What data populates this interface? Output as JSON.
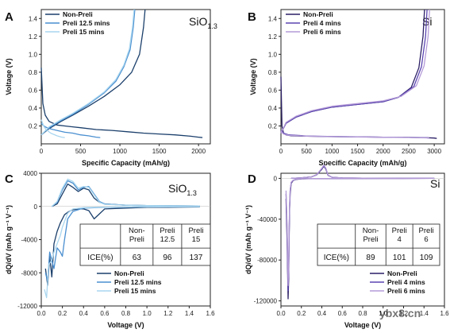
{
  "colors": {
    "dark": "#1b3f6b",
    "mid": "#4a8fd0",
    "light": "#a9d6ef",
    "purple_dark": "#2c1f66",
    "purple_mid": "#5b45b0",
    "purple_light": "#b49bd8"
  },
  "watermark": "ybx8.cn",
  "chart_data": [
    {
      "panel": "A",
      "type": "line",
      "material": "SiO",
      "material_sub": "1.3",
      "xlabel": "Specific Capacity (mAh/g)",
      "ylabel": "Voltage (V)",
      "xlim": [
        0,
        2150
      ],
      "ylim": [
        0,
        1.5
      ],
      "xticks": [
        0,
        500,
        1000,
        1500,
        2000
      ],
      "yticks": [
        0.2,
        0.4,
        0.6,
        0.8,
        1.0,
        1.2,
        1.4
      ],
      "legend": "top-left",
      "series": [
        {
          "name": "Non-Preli",
          "color": "dark",
          "style": "solid",
          "x": [
            0,
            20,
            50,
            100,
            200,
            300,
            400,
            500,
            700,
            900,
            1100,
            1300,
            1500,
            1700,
            1900,
            2000,
            2050
          ],
          "y": [
            0.85,
            0.45,
            0.32,
            0.25,
            0.21,
            0.2,
            0.19,
            0.18,
            0.16,
            0.15,
            0.135,
            0.12,
            0.11,
            0.1,
            0.085,
            0.075,
            0.07
          ]
        },
        {
          "name": "Non-Preli (charge)",
          "color": "dark",
          "style": "solid",
          "x": [
            0,
            100,
            250,
            400,
            600,
            800,
            1000,
            1150,
            1250,
            1300,
            1320
          ],
          "y": [
            0.1,
            0.17,
            0.25,
            0.32,
            0.42,
            0.53,
            0.66,
            0.8,
            1.0,
            1.3,
            1.5
          ]
        },
        {
          "name": "Preli 12.5 mins",
          "color": "mid",
          "style": "solid",
          "x": [
            0,
            20,
            50,
            100,
            200,
            300,
            400,
            500,
            600,
            700,
            750
          ],
          "y": [
            0.23,
            0.21,
            0.19,
            0.17,
            0.15,
            0.13,
            0.12,
            0.1,
            0.09,
            0.075,
            0.07
          ]
        },
        {
          "name": "Preli 12.5 mins (charge)",
          "color": "mid",
          "style": "solid",
          "x": [
            0,
            100,
            250,
            400,
            600,
            800,
            950,
            1050,
            1130,
            1170,
            1190
          ],
          "y": [
            0.1,
            0.18,
            0.26,
            0.33,
            0.44,
            0.57,
            0.7,
            0.86,
            1.05,
            1.3,
            1.5
          ]
        },
        {
          "name": "Preli 15 mins",
          "color": "light",
          "style": "solid",
          "x": [
            0,
            30,
            60,
            120,
            200,
            260,
            300
          ],
          "y": [
            0.27,
            0.2,
            0.16,
            0.12,
            0.09,
            0.075,
            0.07
          ]
        },
        {
          "name": "Preli 15 mins (charge)",
          "color": "light",
          "style": "solid",
          "x": [
            0,
            100,
            250,
            400,
            600,
            800,
            950,
            1050,
            1120,
            1160,
            1180
          ],
          "y": [
            0.1,
            0.19,
            0.27,
            0.34,
            0.45,
            0.58,
            0.72,
            0.88,
            1.06,
            1.3,
            1.5
          ]
        }
      ]
    },
    {
      "panel": "B",
      "type": "line",
      "material": "Si",
      "material_sub": "",
      "xlabel": "Specific Capacity (mAh/g)",
      "ylabel": "Voltage (V)",
      "xlim": [
        0,
        3200
      ],
      "ylim": [
        0,
        1.5
      ],
      "xticks": [
        0,
        500,
        1000,
        1500,
        2000,
        2500,
        3000
      ],
      "yticks": [
        0.2,
        0.4,
        0.6,
        0.8,
        1.0,
        1.2,
        1.4
      ],
      "legend": "top-left",
      "series": [
        {
          "name": "Non-Preli",
          "color": "purple_dark",
          "style": "solid",
          "x": [
            0,
            20,
            50,
            100,
            200,
            500,
            1000,
            1500,
            2000,
            2500,
            2800,
            3000,
            3050
          ],
          "y": [
            0.75,
            0.2,
            0.12,
            0.1,
            0.09,
            0.085,
            0.08,
            0.078,
            0.075,
            0.072,
            0.07,
            0.065,
            0.06
          ]
        },
        {
          "name": "Non-Preli (charge)",
          "color": "purple_dark",
          "style": "solid",
          "x": [
            0,
            100,
            300,
            600,
            1000,
            1500,
            2000,
            2300,
            2550,
            2700,
            2780,
            2810
          ],
          "y": [
            0.12,
            0.23,
            0.3,
            0.36,
            0.41,
            0.44,
            0.47,
            0.52,
            0.63,
            0.85,
            1.2,
            1.5
          ]
        },
        {
          "name": "Preli 4 mins",
          "color": "purple_mid",
          "style": "solid",
          "x": [
            0,
            50,
            150,
            500,
            1000,
            1500,
            2000,
            2500,
            2850,
            2900
          ],
          "y": [
            0.15,
            0.12,
            0.1,
            0.088,
            0.082,
            0.078,
            0.075,
            0.072,
            0.068,
            0.065
          ]
        },
        {
          "name": "Preli 4 mins (charge)",
          "color": "purple_mid",
          "style": "solid",
          "x": [
            0,
            100,
            300,
            600,
            1000,
            1500,
            2000,
            2300,
            2600,
            2750,
            2830,
            2860
          ],
          "y": [
            0.12,
            0.23,
            0.3,
            0.36,
            0.41,
            0.44,
            0.47,
            0.52,
            0.64,
            0.86,
            1.2,
            1.5
          ]
        },
        {
          "name": "Preli 6 mins",
          "color": "purple_light",
          "style": "solid",
          "x": [
            0,
            50,
            150,
            500,
            1000,
            1500,
            2000,
            2500,
            2850,
            2900
          ],
          "y": [
            0.14,
            0.11,
            0.095,
            0.086,
            0.081,
            0.077,
            0.074,
            0.071,
            0.067,
            0.064
          ]
        },
        {
          "name": "Preli 6 mins (charge)",
          "color": "purple_light",
          "style": "solid",
          "x": [
            0,
            100,
            300,
            600,
            1000,
            1500,
            2000,
            2350,
            2650,
            2800,
            2880,
            2910
          ],
          "y": [
            0.12,
            0.24,
            0.31,
            0.37,
            0.42,
            0.45,
            0.48,
            0.53,
            0.65,
            0.87,
            1.2,
            1.5
          ]
        }
      ]
    },
    {
      "panel": "C",
      "type": "line",
      "material": "SiO",
      "material_sub": "1.3",
      "xlabel": "Voltage (V)",
      "ylabel": "dQ/dV (mAh g⁻¹ V⁻¹)",
      "xlim": [
        0,
        1.6
      ],
      "ylim": [
        -12000,
        4000
      ],
      "xticks": [
        0.0,
        0.2,
        0.4,
        0.6,
        0.8,
        1.0,
        1.2,
        1.4,
        1.6
      ],
      "yticks": [
        -12000,
        -8000,
        -4000,
        0,
        4000
      ],
      "legend": "bottom-right",
      "series": [
        {
          "name": "Non-Preli",
          "color": "dark",
          "x": [
            0.04,
            0.06,
            0.08,
            0.1,
            0.12,
            0.15,
            0.18,
            0.2,
            0.22,
            0.25,
            0.28,
            0.3,
            0.35,
            0.4,
            0.45,
            0.5,
            0.6,
            0.8,
            1.0,
            1.2,
            1.5
          ],
          "y": [
            -7500,
            -9500,
            -6000,
            -8500,
            -4500,
            -3000,
            -2000,
            -1500,
            -1000,
            -700,
            -500,
            -400,
            -300,
            -300,
            -500,
            -1500,
            -300,
            -200,
            -100,
            -100,
            -50
          ]
        },
        {
          "name": "Non-Preli (delith)",
          "color": "dark",
          "x": [
            0.1,
            0.15,
            0.2,
            0.25,
            0.3,
            0.35,
            0.4,
            0.45,
            0.5,
            0.55,
            0.6,
            0.8,
            1.0,
            1.5
          ],
          "y": [
            0,
            300,
            1500,
            2700,
            2300,
            1800,
            2200,
            2000,
            1000,
            500,
            300,
            150,
            100,
            50
          ]
        },
        {
          "name": "Preli 12.5 mins",
          "color": "mid",
          "x": [
            0.04,
            0.06,
            0.08,
            0.1,
            0.12,
            0.15,
            0.18,
            0.2,
            0.22,
            0.25,
            0.3,
            0.4,
            0.6,
            1.0,
            1.5
          ],
          "y": [
            -8000,
            -9000,
            -5500,
            -6500,
            -7500,
            -5000,
            -5500,
            -6000,
            -4000,
            -1500,
            -600,
            -200,
            -100,
            -50,
            -20
          ]
        },
        {
          "name": "Preli 12.5 mins (delith)",
          "color": "mid",
          "x": [
            0.1,
            0.15,
            0.2,
            0.25,
            0.3,
            0.35,
            0.4,
            0.45,
            0.5,
            0.55,
            0.6,
            0.8,
            1.0,
            1.5
          ],
          "y": [
            0,
            500,
            2000,
            3100,
            2800,
            2000,
            2300,
            2400,
            1500,
            600,
            300,
            150,
            100,
            50
          ]
        },
        {
          "name": "Preli 15 mins",
          "color": "light",
          "x": [
            0.03,
            0.05,
            0.07,
            0.1,
            0.12,
            0.15,
            0.18,
            0.2,
            0.25,
            0.3,
            0.4,
            0.6,
            1.0,
            1.5
          ],
          "y": [
            -10000,
            -11000,
            -7000,
            -6500,
            -5500,
            -4500,
            -3500,
            -2500,
            -800,
            -300,
            -150,
            -80,
            -40,
            -20
          ]
        },
        {
          "name": "Preli 15 mins (delith)",
          "color": "light",
          "x": [
            0.1,
            0.15,
            0.2,
            0.25,
            0.3,
            0.35,
            0.4,
            0.45,
            0.5,
            0.55,
            0.6,
            0.8,
            1.0,
            1.5
          ],
          "y": [
            0,
            600,
            2200,
            3300,
            3000,
            2200,
            2400,
            2300,
            1400,
            500,
            250,
            150,
            100,
            50
          ]
        }
      ],
      "table": {
        "header": [
          "",
          "Non-\nPreli",
          "Preli\n12.5",
          "Preli\n15"
        ],
        "row_label": "ICE(%)",
        "values": [
          "63",
          "96",
          "137"
        ]
      }
    },
    {
      "panel": "D",
      "type": "line",
      "material": "Si",
      "material_sub": "",
      "xlabel": "Voltage (V)",
      "ylabel": "dQ/dV (mAh g⁻¹ V⁻¹)",
      "xlim": [
        0,
        1.6
      ],
      "ylim": [
        -125000,
        5000
      ],
      "xticks": [
        0.0,
        0.2,
        0.4,
        0.6,
        0.8,
        1.0,
        1.2,
        1.4,
        1.6
      ],
      "yticks": [
        -120000,
        -80000,
        -40000,
        0
      ],
      "legend": "bottom-right",
      "series": [
        {
          "name": "Non-Preli",
          "color": "purple_dark",
          "x": [
            0.05,
            0.06,
            0.07,
            0.075,
            0.08,
            0.085,
            0.09,
            0.1,
            0.12,
            0.15,
            0.2,
            0.3,
            0.5,
            1.0,
            1.5
          ],
          "y": [
            -20000,
            -60000,
            -118000,
            -100000,
            -60000,
            -30000,
            -15000,
            -5000,
            -2000,
            -1000,
            -500,
            -200,
            -100,
            -50,
            -20
          ]
        },
        {
          "name": "Non-Preli (delith)",
          "color": "purple_dark",
          "x": [
            0.1,
            0.2,
            0.3,
            0.35,
            0.4,
            0.42,
            0.44,
            0.46,
            0.5,
            0.6,
            0.8,
            1.0,
            1.5
          ],
          "y": [
            0,
            500,
            1500,
            3500,
            9000,
            12000,
            9000,
            3000,
            1000,
            400,
            200,
            100,
            50
          ]
        },
        {
          "name": "Preli 4 mins",
          "color": "purple_mid",
          "x": [
            0.05,
            0.06,
            0.07,
            0.075,
            0.08,
            0.085,
            0.09,
            0.1,
            0.12,
            0.15,
            0.2,
            0.3,
            0.5,
            1.0,
            1.5
          ],
          "y": [
            -15000,
            -50000,
            -110000,
            -95000,
            -55000,
            -28000,
            -12000,
            -4000,
            -1800,
            -900,
            -400,
            -200,
            -100,
            -50,
            -20
          ]
        },
        {
          "name": "Preli 4 mins (delith)",
          "color": "purple_mid",
          "x": [
            0.1,
            0.2,
            0.3,
            0.35,
            0.4,
            0.42,
            0.44,
            0.46,
            0.5,
            0.6,
            0.8,
            1.0,
            1.5
          ],
          "y": [
            0,
            500,
            1500,
            3600,
            9500,
            12500,
            9500,
            3200,
            1000,
            400,
            200,
            100,
            50
          ]
        },
        {
          "name": "Preli 6 mins",
          "color": "purple_light",
          "x": [
            0.05,
            0.06,
            0.07,
            0.075,
            0.08,
            0.085,
            0.09,
            0.1,
            0.12,
            0.15,
            0.2,
            0.3,
            0.5,
            1.0,
            1.5
          ],
          "y": [
            -12000,
            -45000,
            -105000,
            -90000,
            -50000,
            -25000,
            -11000,
            -3800,
            -1700,
            -850,
            -380,
            -190,
            -100,
            -50,
            -20
          ]
        },
        {
          "name": "Preli 6 mins (delith)",
          "color": "purple_light",
          "x": [
            0.1,
            0.2,
            0.3,
            0.35,
            0.4,
            0.42,
            0.44,
            0.46,
            0.5,
            0.6,
            0.8,
            1.0,
            1.5
          ],
          "y": [
            0,
            500,
            1500,
            3700,
            10000,
            13000,
            10000,
            3300,
            1000,
            400,
            200,
            100,
            50
          ]
        }
      ],
      "table": {
        "header": [
          "",
          "Non-\nPreli",
          "Preli\n4",
          "Preli\n6"
        ],
        "row_label": "ICE(%)",
        "values": [
          "89",
          "101",
          "109"
        ]
      }
    }
  ]
}
